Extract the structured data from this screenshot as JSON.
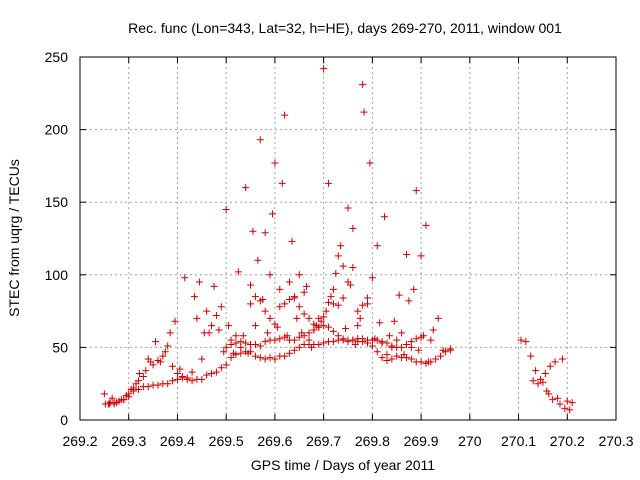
{
  "chart_data": {
    "type": "scatter",
    "title": "Rec. func (Lon=343, Lat=32, h=HE), days 269-270, 2011, window 001",
    "xlabel": "GPS time / Days of year 2011",
    "ylabel": "STEC from uqrg / TECUs",
    "xlim": [
      269.2,
      270.3
    ],
    "ylim": [
      0,
      250
    ],
    "xticks": [
      "269.2",
      "269.3",
      "269.4",
      "269.5",
      "269.6",
      "269.7",
      "269.8",
      "269.9",
      "270",
      "270.1",
      "270.2",
      "270.3"
    ],
    "xtick_values": [
      269.2,
      269.3,
      269.4,
      269.5,
      269.6,
      269.7,
      269.8,
      269.9,
      270.0,
      270.1,
      270.2,
      270.3
    ],
    "yticks": [
      "0",
      "50",
      "100",
      "150",
      "200",
      "250"
    ],
    "ytick_values": [
      0,
      50,
      100,
      150,
      200,
      250
    ],
    "grid": true,
    "marker": "+",
    "color": "#cc0000",
    "series": [
      {
        "points": [
          [
            269.25,
            18
          ],
          [
            269.252,
            11
          ],
          [
            269.258,
            11
          ],
          [
            269.262,
            12
          ],
          [
            269.266,
            15
          ],
          [
            269.27,
            11
          ],
          [
            269.275,
            12
          ],
          [
            269.28,
            13
          ],
          [
            269.285,
            14
          ],
          [
            269.29,
            14
          ],
          [
            269.295,
            17
          ],
          [
            269.3,
            18
          ],
          [
            269.305,
            21
          ],
          [
            269.31,
            22
          ],
          [
            269.315,
            25
          ],
          [
            269.32,
            27
          ],
          [
            269.322,
            32
          ],
          [
            269.33,
            30
          ],
          [
            269.335,
            34
          ],
          [
            269.34,
            42
          ],
          [
            269.345,
            40
          ],
          [
            269.35,
            38
          ],
          [
            269.355,
            54
          ],
          [
            269.36,
            41
          ],
          [
            269.365,
            40
          ],
          [
            269.37,
            44
          ],
          [
            269.375,
            47
          ],
          [
            269.38,
            51
          ],
          [
            269.385,
            60
          ],
          [
            269.39,
            37
          ],
          [
            269.395,
            68
          ],
          [
            269.4,
            32
          ],
          [
            269.405,
            35
          ],
          [
            269.41,
            30
          ],
          [
            269.415,
            98
          ],
          [
            269.42,
            29
          ],
          [
            269.43,
            33
          ],
          [
            269.435,
            85
          ],
          [
            269.44,
            70
          ],
          [
            269.445,
            95
          ],
          [
            269.45,
            42
          ],
          [
            269.455,
            60
          ],
          [
            269.46,
            75
          ],
          [
            269.465,
            60
          ],
          [
            269.47,
            65
          ],
          [
            269.475,
            92
          ],
          [
            269.48,
            72
          ],
          [
            269.485,
            62
          ],
          [
            269.49,
            78
          ],
          [
            269.495,
            47
          ],
          [
            269.5,
            145
          ],
          [
            269.505,
            65
          ],
          [
            269.51,
            55
          ],
          [
            269.515,
            46
          ],
          [
            269.52,
            58
          ],
          [
            269.525,
            102
          ],
          [
            269.53,
            50
          ],
          [
            269.535,
            58
          ],
          [
            269.54,
            160
          ],
          [
            269.545,
            46
          ],
          [
            269.55,
            93
          ],
          [
            269.555,
            130
          ],
          [
            269.56,
            65
          ],
          [
            269.565,
            110
          ],
          [
            269.57,
            193
          ],
          [
            269.575,
            83
          ],
          [
            269.58,
            129
          ],
          [
            269.585,
            60
          ],
          [
            269.59,
            100
          ],
          [
            269.595,
            142
          ],
          [
            269.6,
            177
          ],
          [
            269.605,
            64
          ],
          [
            269.61,
            90
          ],
          [
            269.615,
            163
          ],
          [
            269.62,
            210
          ],
          [
            269.625,
            58
          ],
          [
            269.63,
            95
          ],
          [
            269.635,
            123
          ],
          [
            269.64,
            85
          ],
          [
            269.645,
            70
          ],
          [
            269.65,
            100
          ],
          [
            269.655,
            60
          ],
          [
            269.66,
            88
          ],
          [
            269.665,
            92
          ],
          [
            269.67,
            55
          ],
          [
            269.675,
            50
          ],
          [
            269.68,
            62
          ],
          [
            269.685,
            65
          ],
          [
            269.69,
            70
          ],
          [
            269.695,
            68
          ],
          [
            269.7,
            242
          ],
          [
            269.705,
            75
          ],
          [
            269.71,
            163
          ],
          [
            269.715,
            85
          ],
          [
            269.72,
            90
          ],
          [
            269.725,
            101
          ],
          [
            269.73,
            113
          ],
          [
            269.735,
            120
          ],
          [
            269.74,
            106
          ],
          [
            269.745,
            63
          ],
          [
            269.75,
            146
          ],
          [
            269.755,
            93
          ],
          [
            269.76,
            132
          ],
          [
            269.765,
            52
          ],
          [
            269.77,
            65
          ],
          [
            269.775,
            70
          ],
          [
            269.78,
            231
          ],
          [
            269.783,
            212
          ],
          [
            269.79,
            84
          ],
          [
            269.795,
            177
          ],
          [
            269.8,
            98
          ],
          [
            269.805,
            56
          ],
          [
            269.81,
            120
          ],
          [
            269.815,
            67
          ],
          [
            269.82,
            53
          ],
          [
            269.825,
            140
          ],
          [
            269.83,
            45
          ],
          [
            269.835,
            58
          ],
          [
            269.84,
            50
          ],
          [
            269.845,
            68
          ],
          [
            269.85,
            55
          ],
          [
            269.855,
            86
          ],
          [
            269.86,
            60
          ],
          [
            269.865,
            45
          ],
          [
            269.87,
            114
          ],
          [
            269.875,
            82
          ],
          [
            269.88,
            50
          ],
          [
            269.885,
            90
          ],
          [
            269.89,
            158
          ],
          [
            269.895,
            48
          ],
          [
            269.9,
            113
          ],
          [
            269.905,
            58
          ],
          [
            269.91,
            134
          ],
          [
            269.915,
            40
          ],
          [
            269.92,
            55
          ],
          [
            269.925,
            62
          ],
          [
            269.935,
            70
          ],
          [
            269.945,
            48
          ],
          [
            269.96,
            48
          ],
          [
            270.105,
            55
          ],
          [
            270.115,
            54
          ],
          [
            270.125,
            44
          ],
          [
            270.13,
            27
          ],
          [
            270.135,
            34
          ],
          [
            270.14,
            25
          ],
          [
            270.145,
            28
          ],
          [
            270.15,
            26
          ],
          [
            270.155,
            32
          ],
          [
            270.158,
            20
          ],
          [
            270.162,
            18
          ],
          [
            270.165,
            37
          ],
          [
            270.17,
            14
          ],
          [
            270.175,
            40
          ],
          [
            270.18,
            15
          ],
          [
            270.185,
            11
          ],
          [
            270.19,
            42
          ],
          [
            270.195,
            8
          ],
          [
            270.2,
            13
          ],
          [
            270.205,
            7
          ],
          [
            270.21,
            12
          ]
        ]
      },
      {
        "points": [
          [
            269.26,
            11
          ],
          [
            269.27,
            12
          ],
          [
            269.28,
            13
          ],
          [
            269.29,
            14
          ],
          [
            269.3,
            16
          ],
          [
            269.31,
            20
          ],
          [
            269.32,
            21
          ],
          [
            269.33,
            23
          ],
          [
            269.34,
            23
          ],
          [
            269.35,
            24
          ],
          [
            269.36,
            24
          ],
          [
            269.37,
            25
          ],
          [
            269.38,
            25
          ],
          [
            269.39,
            27
          ],
          [
            269.4,
            28
          ],
          [
            269.41,
            29
          ],
          [
            269.42,
            28
          ],
          [
            269.43,
            27
          ],
          [
            269.44,
            28
          ],
          [
            269.45,
            28
          ],
          [
            269.46,
            31
          ],
          [
            269.47,
            32
          ],
          [
            269.48,
            33
          ],
          [
            269.49,
            36
          ],
          [
            269.5,
            38
          ],
          [
            269.51,
            43
          ],
          [
            269.52,
            45
          ],
          [
            269.53,
            46
          ],
          [
            269.54,
            47
          ],
          [
            269.55,
            47
          ],
          [
            269.56,
            44
          ],
          [
            269.57,
            43
          ],
          [
            269.58,
            42
          ],
          [
            269.59,
            43
          ],
          [
            269.6,
            42
          ],
          [
            269.61,
            44
          ],
          [
            269.62,
            44
          ],
          [
            269.63,
            46
          ],
          [
            269.64,
            48
          ],
          [
            269.65,
            50
          ],
          [
            269.66,
            52
          ],
          [
            269.67,
            52
          ],
          [
            269.68,
            52
          ],
          [
            269.69,
            52
          ],
          [
            269.7,
            53
          ],
          [
            269.71,
            54
          ],
          [
            269.72,
            54
          ],
          [
            269.73,
            55
          ],
          [
            269.74,
            55
          ],
          [
            269.75,
            55
          ],
          [
            269.76,
            55
          ],
          [
            269.77,
            54
          ],
          [
            269.78,
            54
          ],
          [
            269.79,
            53
          ],
          [
            269.8,
            51
          ],
          [
            269.81,
            47
          ],
          [
            269.82,
            43
          ],
          [
            269.83,
            41
          ],
          [
            269.84,
            42
          ],
          [
            269.85,
            44
          ],
          [
            269.86,
            43
          ],
          [
            269.87,
            43
          ],
          [
            269.88,
            42
          ],
          [
            269.89,
            40
          ],
          [
            269.9,
            40
          ],
          [
            269.91,
            39
          ],
          [
            269.92,
            40
          ],
          [
            269.93,
            42
          ],
          [
            269.94,
            44
          ],
          [
            269.95,
            47
          ],
          [
            269.96,
            49
          ]
        ]
      },
      {
        "points": [
          [
            269.5,
            50
          ],
          [
            269.51,
            52
          ],
          [
            269.52,
            53
          ],
          [
            269.53,
            54
          ],
          [
            269.54,
            53
          ],
          [
            269.55,
            52
          ],
          [
            269.56,
            52
          ],
          [
            269.57,
            51
          ],
          [
            269.58,
            54
          ],
          [
            269.59,
            55
          ],
          [
            269.6,
            55
          ],
          [
            269.61,
            56
          ],
          [
            269.62,
            57
          ],
          [
            269.63,
            55
          ],
          [
            269.64,
            55
          ],
          [
            269.65,
            57
          ],
          [
            269.66,
            58
          ],
          [
            269.67,
            60
          ],
          [
            269.68,
            62
          ],
          [
            269.69,
            64
          ],
          [
            269.7,
            65
          ],
          [
            269.71,
            64
          ],
          [
            269.72,
            61
          ],
          [
            269.73,
            58
          ],
          [
            269.74,
            56
          ],
          [
            269.75,
            54
          ],
          [
            269.76,
            55
          ],
          [
            269.77,
            56
          ],
          [
            269.78,
            56
          ],
          [
            269.79,
            55
          ],
          [
            269.8,
            55
          ],
          [
            269.81,
            55
          ],
          [
            269.82,
            54
          ],
          [
            269.83,
            53
          ],
          [
            269.84,
            51
          ],
          [
            269.85,
            50
          ],
          [
            269.86,
            50
          ],
          [
            269.87,
            52
          ],
          [
            269.88,
            54
          ],
          [
            269.89,
            56
          ],
          [
            269.9,
            57
          ]
        ]
      },
      {
        "points": [
          [
            269.55,
            80
          ],
          [
            269.56,
            85
          ],
          [
            269.57,
            82
          ],
          [
            269.58,
            75
          ],
          [
            269.59,
            70
          ],
          [
            269.6,
            66
          ],
          [
            269.61,
            78
          ],
          [
            269.62,
            80
          ],
          [
            269.63,
            83
          ],
          [
            269.64,
            84
          ],
          [
            269.65,
            78
          ],
          [
            269.66,
            73
          ],
          [
            269.67,
            70
          ],
          [
            269.68,
            66
          ],
          [
            269.69,
            64
          ],
          [
            269.7,
            71
          ],
          [
            269.71,
            81
          ],
          [
            269.72,
            80
          ],
          [
            269.73,
            79
          ],
          [
            269.74,
            84
          ],
          [
            269.75,
            95
          ],
          [
            269.76,
            105
          ],
          [
            269.77,
            75
          ],
          [
            269.78,
            79
          ],
          [
            269.79,
            80
          ]
        ]
      }
    ]
  }
}
